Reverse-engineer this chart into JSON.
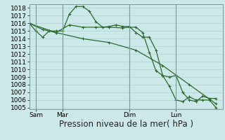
{
  "background_color": "#cce8e8",
  "grid_color": "#aacccc",
  "line_color": "#2d6a2d",
  "ylim": [
    1004.8,
    1018.5
  ],
  "yticks": [
    1005,
    1006,
    1007,
    1008,
    1009,
    1010,
    1011,
    1012,
    1013,
    1014,
    1015,
    1016,
    1017,
    1018
  ],
  "xlabel": "Pression niveau de la mer( hPa )",
  "xlabel_fontsize": 8.5,
  "tick_label_fontsize": 6.5,
  "day_labels": [
    "Sam",
    "Mar",
    "Dim",
    "Lun"
  ],
  "day_positions": [
    2,
    10,
    30,
    44
  ],
  "xlim": [
    0,
    58
  ],
  "series1_x": [
    0,
    2,
    4,
    6,
    8,
    10,
    12,
    14,
    16,
    18,
    20,
    22,
    24,
    26,
    28,
    30,
    32,
    34,
    36,
    38,
    40,
    42,
    44,
    46,
    48,
    50,
    52,
    54,
    56
  ],
  "series1_y": [
    1016.0,
    1015.0,
    1014.2,
    1015.0,
    1015.0,
    1015.0,
    1017.2,
    1018.2,
    1018.2,
    1017.6,
    1016.2,
    1015.5,
    1015.6,
    1015.8,
    1015.6,
    1015.6,
    1014.8,
    1014.2,
    1014.2,
    1012.5,
    1009.2,
    1009.0,
    1009.2,
    1007.0,
    1006.0,
    1005.8,
    1006.5,
    1006.2,
    1006.2
  ],
  "series2_x": [
    0,
    8,
    16,
    24,
    32,
    40,
    48,
    56
  ],
  "series2_y": [
    1016.0,
    1014.8,
    1014.0,
    1013.5,
    1012.5,
    1010.5,
    1008.0,
    1005.5
  ],
  "series3_x": [
    0,
    4,
    8,
    12,
    16,
    20,
    24,
    28,
    30,
    32,
    34,
    36,
    38,
    40,
    42,
    44,
    46,
    48,
    50,
    52,
    54,
    56
  ],
  "series3_y": [
    1016.0,
    1015.2,
    1014.8,
    1015.8,
    1015.5,
    1015.5,
    1015.5,
    1015.4,
    1015.5,
    1015.5,
    1014.8,
    1012.2,
    1009.8,
    1009.2,
    1007.8,
    1006.0,
    1005.8,
    1006.4,
    1006.0,
    1006.0,
    1006.0,
    1005.0
  ]
}
